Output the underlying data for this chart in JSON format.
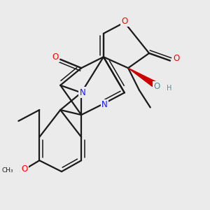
{
  "background_color": "#ebebeb",
  "atom_colors": {
    "C": "#1a1a1a",
    "N": "#1414ff",
    "O": "#ff0000",
    "O_teal": "#4a9090",
    "H": "#4a9090"
  },
  "bond_color": "#1a1a1a",
  "bond_width": 1.6,
  "font_size_atom": 8.5,
  "font_size_small": 7.0
}
